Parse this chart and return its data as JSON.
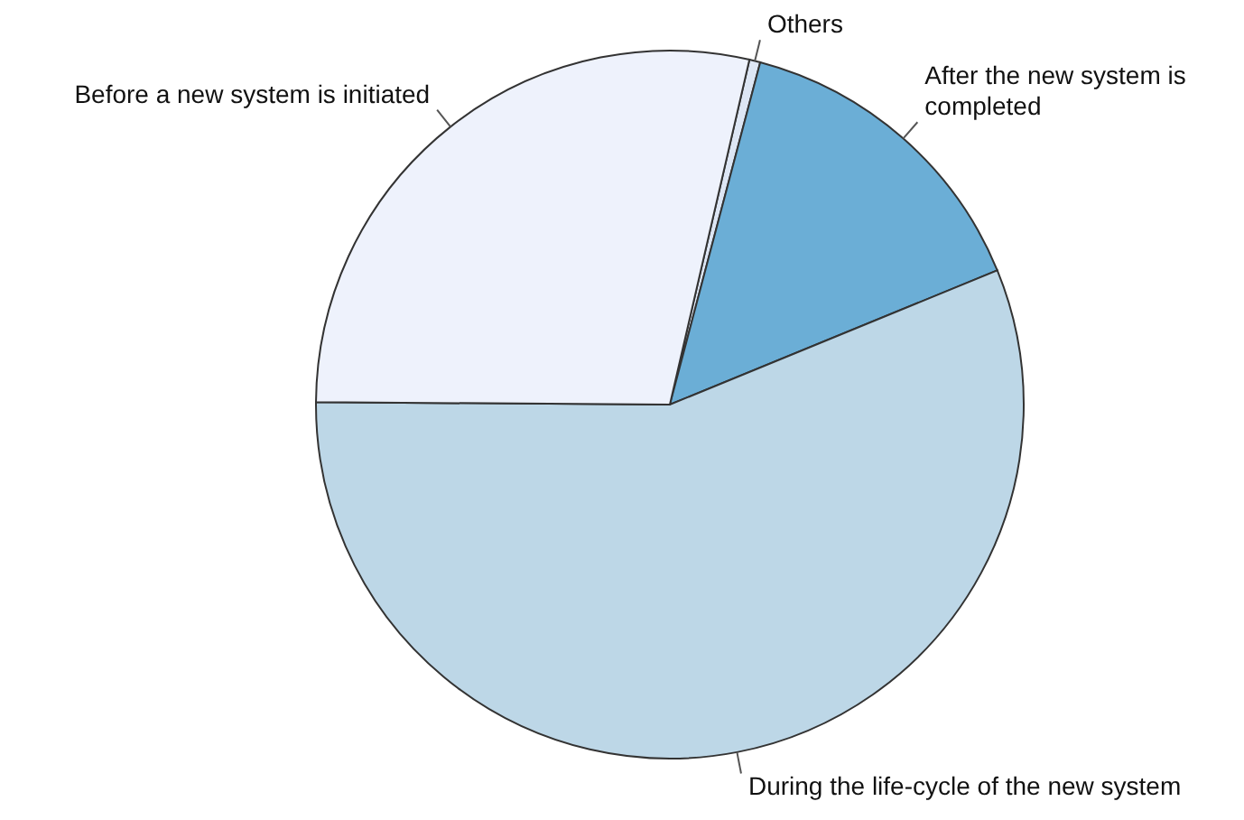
{
  "chart_data": {
    "type": "pie",
    "categories": [
      "Others",
      "After the new system is completed",
      "During the life-cycle of the new system",
      "Before a new system is initiated"
    ],
    "values": [
      0.5,
      14.7,
      56.3,
      28.5
    ],
    "colors": [
      "#dde6f4",
      "#6baed6",
      "#bdd7e7",
      "#eef2fc"
    ],
    "legend": false
  }
}
